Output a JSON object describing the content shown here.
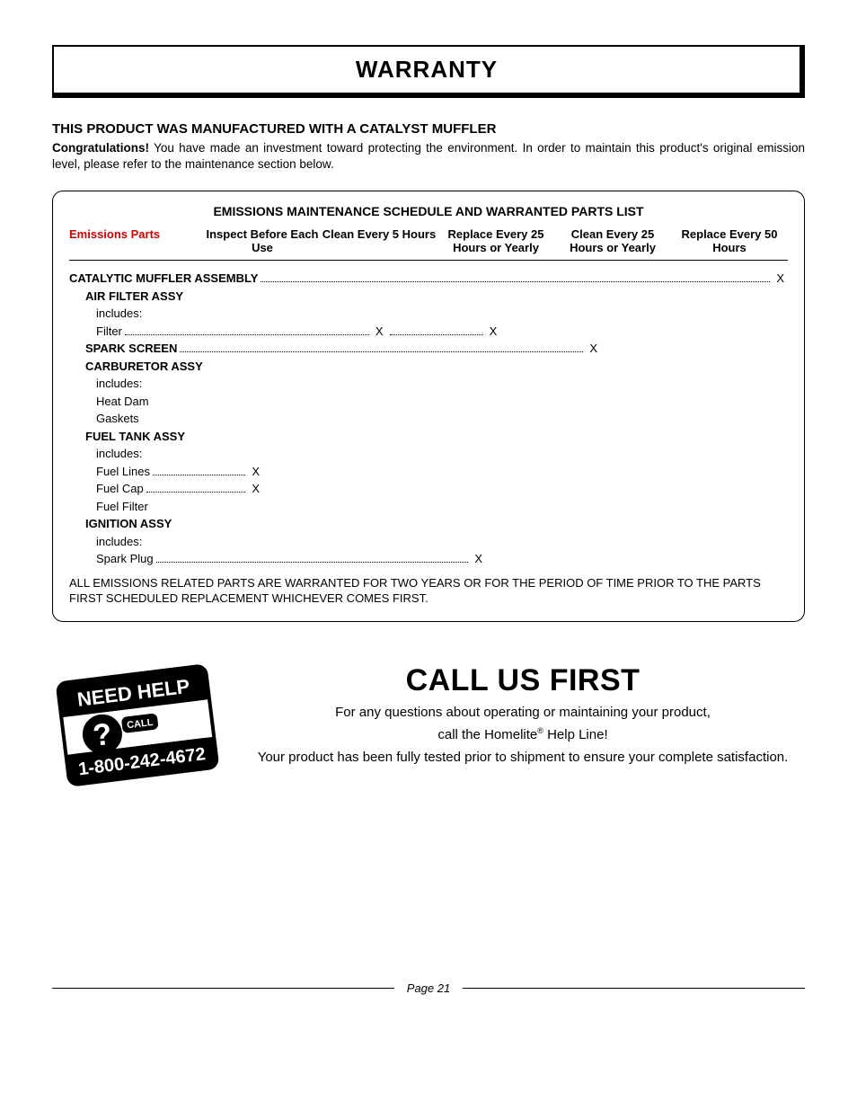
{
  "colors": {
    "text": "#000000",
    "background": "#ffffff",
    "border": "#000000",
    "accent_red": "#cc0000"
  },
  "title": "WARRANTY",
  "subhead": "THIS PRODUCT WAS MANUFACTURED WITH A CATALYST MUFFLER",
  "intro_bold": "Congratulations!",
  "intro_rest": " You have made an investment toward protecting the environment. In order to maintain this product's original emission level, please refer to the maintenance section below.",
  "schedule": {
    "title": "EMISSIONS MAINTENANCE SCHEDULE AND  WARRANTED PARTS LIST",
    "columns": [
      "Emissions Parts",
      "Inspect Before Each Use",
      "Clean Every 5 Hours",
      "Replace Every 25 Hours or Yearly",
      "Clean Every 25 Hours or Yearly",
      "Replace Every 50 Hours"
    ],
    "col_pct": [
      0,
      27,
      43,
      58,
      74,
      100
    ],
    "rows": [
      {
        "label": "CATALYTIC MUFFLER ASSEMBLY",
        "bold": true,
        "indent": 0,
        "mark_col": 5
      },
      {
        "label": "AIR FILTER ASSY",
        "bold": true,
        "indent": 1,
        "mark_col": null
      },
      {
        "label": "includes:",
        "bold": false,
        "indent": 2,
        "mark_col": null
      },
      {
        "label": "Filter",
        "bold": false,
        "indent": 2,
        "mark_col": 3,
        "extra_mark_col": 2
      },
      {
        "label": "SPARK SCREEN",
        "bold": true,
        "indent": 1,
        "mark_col": 4
      },
      {
        "label": "CARBURETOR ASSY",
        "bold": true,
        "indent": 1,
        "mark_col": null
      },
      {
        "label": "includes:",
        "bold": false,
        "indent": 2,
        "mark_col": null
      },
      {
        "label": "Heat Dam",
        "bold": false,
        "indent": 2,
        "mark_col": null
      },
      {
        "label": "Gaskets",
        "bold": false,
        "indent": 2,
        "mark_col": null
      },
      {
        "label": "FUEL TANK ASSY",
        "bold": true,
        "indent": 1,
        "mark_col": null
      },
      {
        "label": "includes:",
        "bold": false,
        "indent": 2,
        "mark_col": null
      },
      {
        "label": "Fuel Lines",
        "bold": false,
        "indent": 2,
        "mark_col": 1
      },
      {
        "label": "Fuel Cap",
        "bold": false,
        "indent": 2,
        "mark_col": 1
      },
      {
        "label": "Fuel Filter",
        "bold": false,
        "indent": 2,
        "mark_col": null
      },
      {
        "label": "IGNITION ASSY",
        "bold": true,
        "indent": 1,
        "mark_col": null
      },
      {
        "label": "includes:",
        "bold": false,
        "indent": 2,
        "mark_col": null
      },
      {
        "label": "Spark Plug",
        "bold": false,
        "indent": 2,
        "mark_col": 3
      }
    ],
    "mark_char": "X",
    "note": "ALL EMISSIONS RELATED PARTS ARE WARRANTED FOR TWO YEARS OR FOR THE PERIOD OF TIME PRIOR TO THE PARTS FIRST SCHEDULED REPLACEMENT WHICHEVER COMES FIRST."
  },
  "callus": {
    "title": "CALL US FIRST",
    "line1": "For any questions about operating or maintaining your product,",
    "line2a": "call the Homelite",
    "line2b": " Help Line!",
    "line3": "Your product has been fully tested prior to shipment to ensure your complete satisfaction.",
    "badge": {
      "top_text": "NEED HELP",
      "bottom_text": "CALL",
      "phone": "1-800-242-4672"
    }
  },
  "footer": "Page 21"
}
